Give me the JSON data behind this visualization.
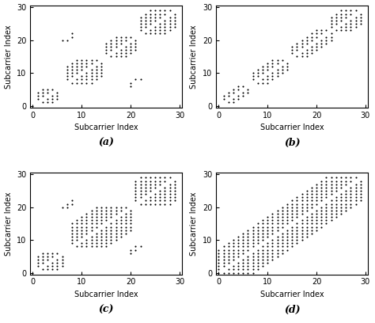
{
  "n": 30,
  "xlabel": "Subcarrier Index",
  "ylabel": "Subcarrier Index",
  "xlim": [
    -0.5,
    30.5
  ],
  "ylim": [
    -0.5,
    30.5
  ],
  "xticks": [
    0,
    10,
    20,
    30
  ],
  "yticks": [
    0,
    10,
    20,
    30
  ],
  "labels": [
    "(a)",
    "(b)",
    "(c)",
    "(d)"
  ],
  "marker_size": 3.0,
  "marker_color": "black",
  "figsize": [
    4.74,
    4.08
  ],
  "dpi": 100
}
